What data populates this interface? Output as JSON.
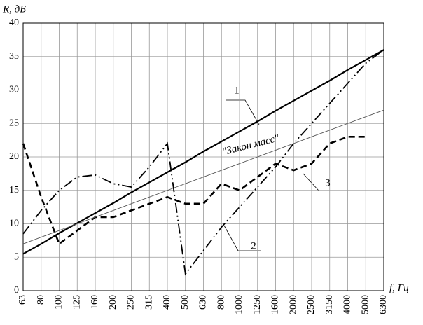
{
  "chart_data": {
    "type": "line",
    "y_label": "R, дБ",
    "x_label": "f, Гц",
    "categories": [
      "63",
      "80",
      "100",
      "125",
      "160",
      "200",
      "250",
      "315",
      "400",
      "500",
      "630",
      "800",
      "1000",
      "1250",
      "1600",
      "2000",
      "2500",
      "3150",
      "4000",
      "5000",
      "6300"
    ],
    "series": [
      {
        "name": "1",
        "color": "#000000",
        "values": [
          5.5,
          7.0,
          8.6,
          10.1,
          11.6,
          13.1,
          14.7,
          16.2,
          17.7,
          19.2,
          20.8,
          22.3,
          23.8,
          25.3,
          26.9,
          28.4,
          29.9,
          31.4,
          33.0,
          34.5,
          36.0
        ]
      },
      {
        "name": "2",
        "color": "#000000",
        "values": [
          8.5,
          12,
          15,
          17,
          17.3,
          16,
          15.5,
          18.5,
          22,
          2.5,
          6,
          9.5,
          12.5,
          15.5,
          18.5,
          22,
          25,
          28,
          31,
          34,
          36
        ]
      },
      {
        "name": "3",
        "color": "#000000",
        "values": [
          22,
          14,
          7,
          9,
          11,
          11,
          12,
          13,
          14,
          13,
          13,
          16,
          15,
          17,
          19,
          18,
          19,
          22,
          23,
          23,
          null
        ]
      },
      {
        "name": "\"Закон масс\"",
        "color": "#555555",
        "values": [
          7,
          8,
          9,
          10,
          11,
          12,
          13,
          14,
          15,
          16,
          17,
          18,
          19,
          20,
          21,
          22,
          23,
          24,
          25,
          26,
          27
        ]
      }
    ],
    "ylim": [
      0,
      40
    ],
    "yticks": [
      0,
      5,
      10,
      15,
      20,
      25,
      30,
      35,
      40
    ],
    "grid": true
  }
}
